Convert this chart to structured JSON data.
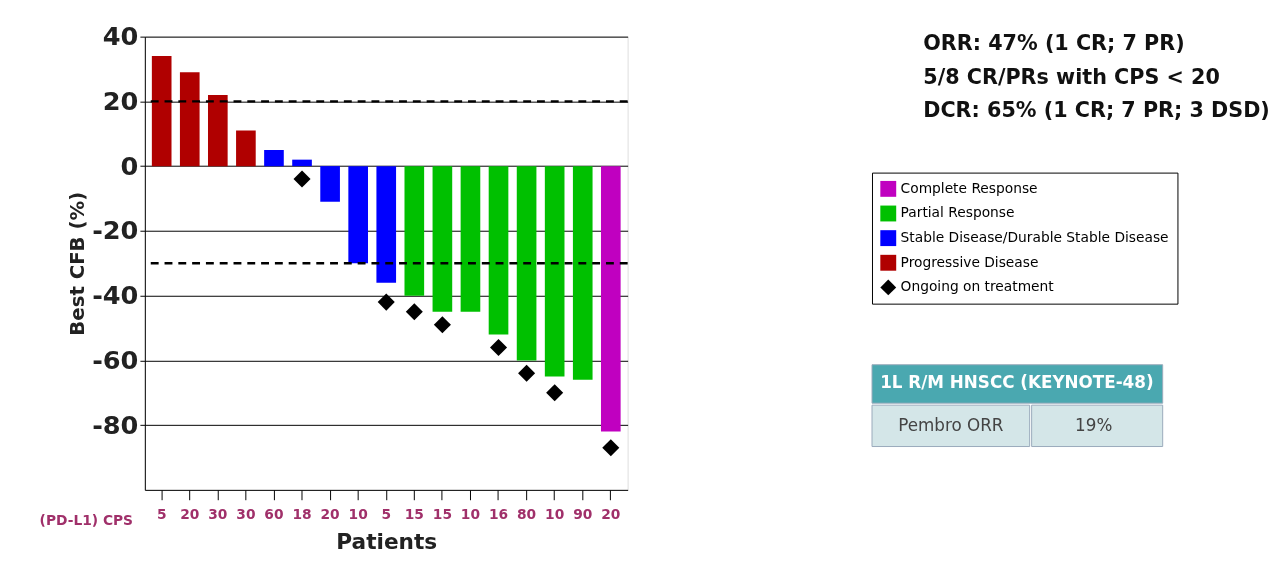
{
  "chart_data": {
    "type": "bar",
    "xlabel": "Patients",
    "ylabel": "Best CFB (%)",
    "categories": [
      "5",
      "20",
      "30",
      "30",
      "60",
      "18",
      "20",
      "10",
      "5",
      "15",
      "15",
      "10",
      "16",
      "80",
      "10",
      "90",
      "20"
    ],
    "series": [
      {
        "name": "Complete Response",
        "color": "#c000c0",
        "values": [
          null,
          null,
          null,
          null,
          null,
          null,
          null,
          null,
          null,
          null,
          null,
          null,
          null,
          null,
          null,
          null,
          -82
        ]
      },
      {
        "name": "Partial Response",
        "color": "#00c000",
        "values": [
          null,
          null,
          null,
          null,
          null,
          null,
          null,
          null,
          null,
          -40,
          -45,
          -45,
          -52,
          -60,
          -65,
          -66,
          null
        ]
      },
      {
        "name": "Stable Disease/Durable Stable Disease",
        "color": "#0000ff",
        "values": [
          null,
          null,
          null,
          null,
          5,
          2,
          -11,
          -30,
          -36,
          null,
          null,
          null,
          null,
          null,
          null,
          null,
          null
        ]
      },
      {
        "name": "Progressive Disease",
        "color": "#b00000",
        "values": [
          34,
          29,
          22,
          11,
          null,
          null,
          null,
          null,
          null,
          null,
          null,
          null,
          null,
          null,
          null,
          null,
          null
        ]
      },
      {
        "name": "Ongoing on treatment",
        "type": "scatter",
        "marker": "diamond",
        "color": "#000000",
        "values": [
          null,
          null,
          null,
          null,
          null,
          -4,
          null,
          null,
          -42,
          -45,
          -49,
          null,
          -56,
          -64,
          -70,
          null,
          -87
        ]
      }
    ],
    "ylim": [
      -100,
      40
    ],
    "yticks": [
      -80,
      -60,
      -40,
      -20,
      0,
      20,
      40
    ],
    "grid": "y",
    "legend": "right",
    "ref_lines": [
      {
        "axis": "y",
        "value": 20,
        "color": "#000000",
        "line_style": "dashed"
      },
      {
        "axis": "y",
        "value": -30,
        "color": "#000000",
        "line_style": "dashed"
      }
    ],
    "annotations": [
      "(PD-L1) CPS",
      "ORR: 47% (1 CR; 7 PR)",
      "5/8 CR/PRs with CPS < 20",
      "DCR: 65% (1 CR; 7 PR; 3 DSD)",
      "1L R/M HNSCC (KEYNOTE-48)",
      "Pembro ORR",
      "19%"
    ]
  }
}
